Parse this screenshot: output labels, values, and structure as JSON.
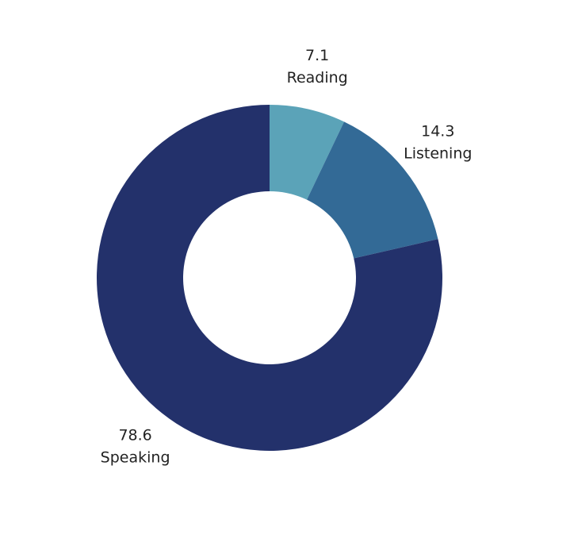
{
  "chart_data": {
    "type": "donut",
    "categories": [
      "Reading",
      "Listening",
      "Speaking"
    ],
    "values": [
      7.1,
      14.3,
      78.6
    ],
    "colors": [
      "#5ba3b8",
      "#336a96",
      "#23316b"
    ]
  }
}
